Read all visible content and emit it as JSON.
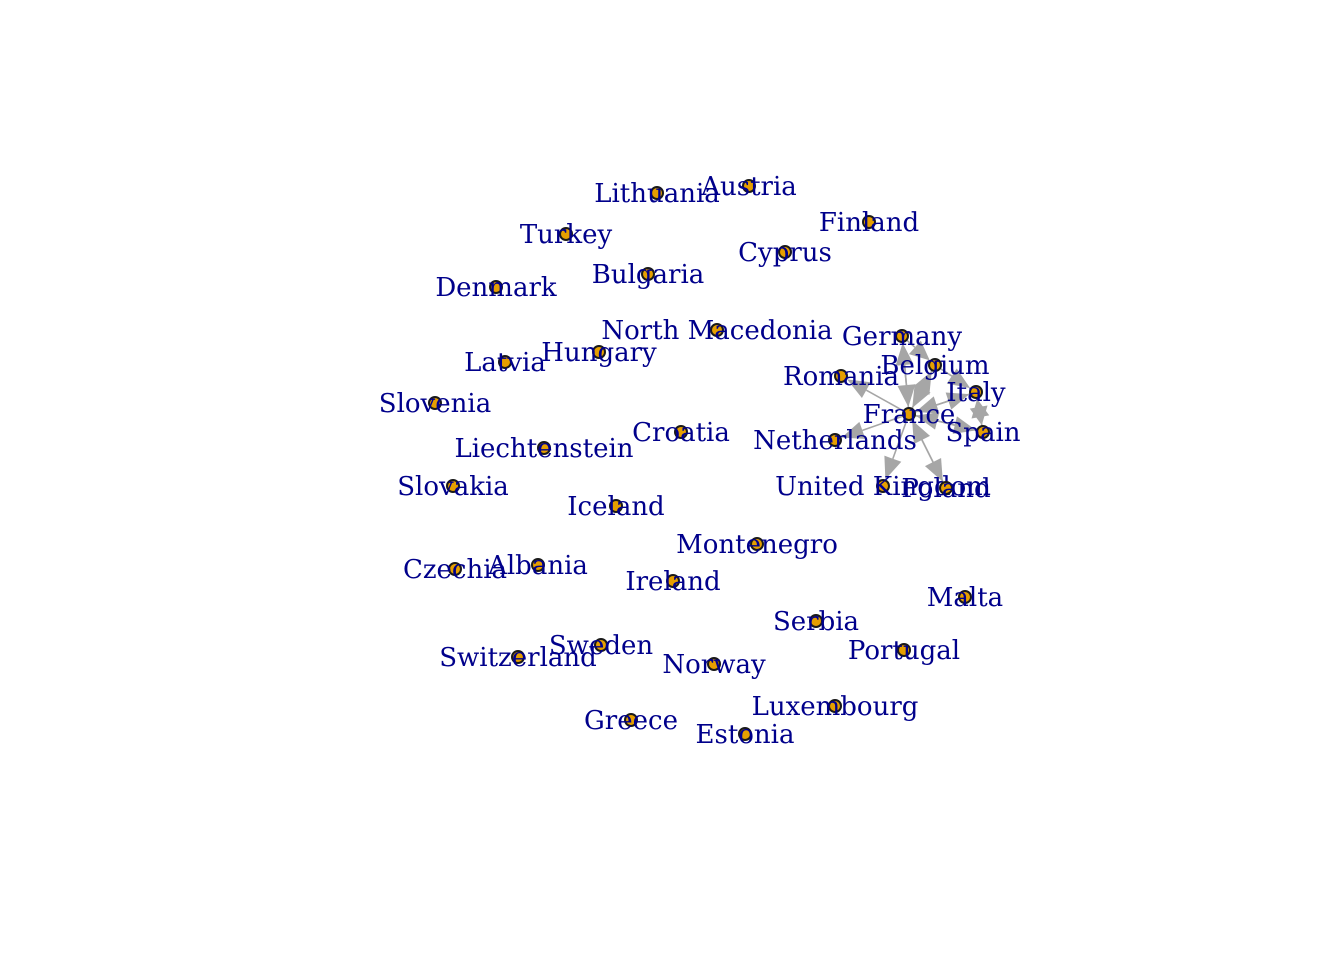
{
  "diagram": {
    "type": "network",
    "directed": true,
    "colors": {
      "label": "#00008b",
      "node_fill": "#e69f00",
      "node_border": "#1a1a1a",
      "edge": "#a6a6a6",
      "background": "#ffffff"
    },
    "nodes": [
      {
        "id": "austria",
        "label": "Austria"
      },
      {
        "id": "lithuania",
        "label": "Lithuania"
      },
      {
        "id": "finland",
        "label": "Finland"
      },
      {
        "id": "turkey",
        "label": "Turkey"
      },
      {
        "id": "cyprus",
        "label": "Cyprus"
      },
      {
        "id": "bulgaria",
        "label": "Bulgaria"
      },
      {
        "id": "denmark",
        "label": "Denmark"
      },
      {
        "id": "north-macedonia",
        "label": "North Macedonia"
      },
      {
        "id": "germany",
        "label": "Germany"
      },
      {
        "id": "hungary",
        "label": "Hungary"
      },
      {
        "id": "latvia",
        "label": "Latvia"
      },
      {
        "id": "belgium",
        "label": "Belgium"
      },
      {
        "id": "romania",
        "label": "Romania"
      },
      {
        "id": "italy",
        "label": "Italy"
      },
      {
        "id": "slovenia",
        "label": "Slovenia"
      },
      {
        "id": "france",
        "label": "France"
      },
      {
        "id": "spain",
        "label": "Spain"
      },
      {
        "id": "croatia",
        "label": "Croatia"
      },
      {
        "id": "netherlands",
        "label": "Netherlands"
      },
      {
        "id": "liechtenstein",
        "label": "Liechtenstein"
      },
      {
        "id": "united-kingdom",
        "label": "United Kingdom"
      },
      {
        "id": "poland",
        "label": "Poland"
      },
      {
        "id": "slovakia",
        "label": "Slovakia"
      },
      {
        "id": "iceland",
        "label": "Iceland"
      },
      {
        "id": "montenegro",
        "label": "Montenegro"
      },
      {
        "id": "albania",
        "label": "Albania"
      },
      {
        "id": "czechia",
        "label": "Czechia"
      },
      {
        "id": "ireland",
        "label": "Ireland"
      },
      {
        "id": "malta",
        "label": "Malta"
      },
      {
        "id": "serbia",
        "label": "Serbia"
      },
      {
        "id": "sweden",
        "label": "Sweden"
      },
      {
        "id": "portugal",
        "label": "Portugal"
      },
      {
        "id": "switzerland",
        "label": "Switzerland"
      },
      {
        "id": "norway",
        "label": "Norway"
      },
      {
        "id": "luxembourg",
        "label": "Luxembourg"
      },
      {
        "id": "greece",
        "label": "Greece"
      },
      {
        "id": "estonia",
        "label": "Estonia"
      }
    ],
    "edges": [
      {
        "from": "france",
        "to": "germany"
      },
      {
        "from": "france",
        "to": "belgium"
      },
      {
        "from": "france",
        "to": "italy"
      },
      {
        "from": "france",
        "to": "spain"
      },
      {
        "from": "france",
        "to": "poland"
      },
      {
        "from": "france",
        "to": "united-kingdom"
      },
      {
        "from": "france",
        "to": "netherlands"
      },
      {
        "from": "france",
        "to": "romania"
      },
      {
        "from": "germany",
        "to": "france"
      },
      {
        "from": "belgium",
        "to": "france"
      },
      {
        "from": "italy",
        "to": "france"
      },
      {
        "from": "spain",
        "to": "france"
      },
      {
        "from": "italy",
        "to": "spain"
      },
      {
        "from": "spain",
        "to": "italy"
      },
      {
        "from": "belgium",
        "to": "italy"
      },
      {
        "from": "germany",
        "to": "belgium"
      },
      {
        "from": "poland",
        "to": "france"
      }
    ]
  }
}
